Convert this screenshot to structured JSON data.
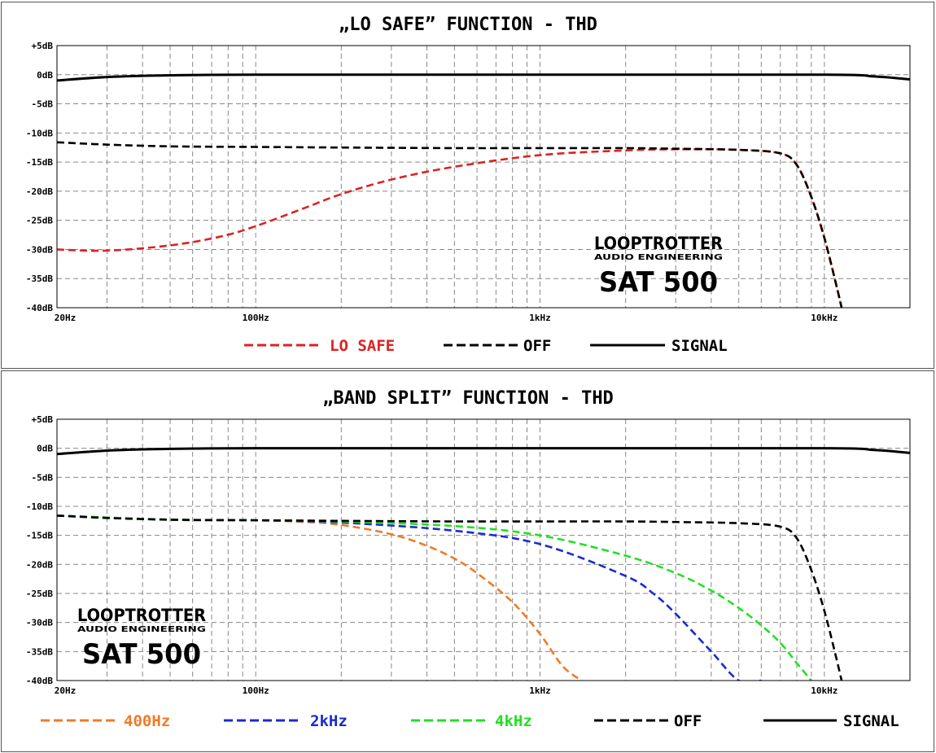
{
  "chart_data": [
    {
      "type": "line",
      "title": "„LO SAFE” FUNCTION - THD",
      "xscale": "log",
      "xlim": [
        20,
        20000
      ],
      "ylim": [
        -40,
        5
      ],
      "x_ticks": [
        "20Hz",
        "100Hz",
        "1kHz",
        "10kHz"
      ],
      "y_ticks": [
        "+5dB",
        "0dB",
        "-5dB",
        "-10dB",
        "-15dB",
        "-20dB",
        "-25dB",
        "-30dB",
        "-35dB",
        "-40dB"
      ],
      "grid": true,
      "legend_position": "bottom",
      "brand": {
        "line1": "LOOPTROTTER",
        "line2": "AUDIO ENGINEERING",
        "line3": "SAT  500"
      },
      "series": [
        {
          "name": "LO SAFE",
          "color": "#dd2222",
          "style": "dashed",
          "x": [
            20,
            30,
            50,
            75,
            100,
            150,
            200,
            300,
            500,
            1000,
            2000,
            3000,
            5000,
            7000,
            8000,
            9000,
            10000,
            11000,
            11500
          ],
          "y": [
            -30,
            -30.2,
            -29.3,
            -27.8,
            -26,
            -22.8,
            -20.5,
            -18,
            -15.8,
            -13.8,
            -13,
            -12.8,
            -12.9,
            -13.5,
            -15.5,
            -21,
            -28,
            -36,
            -40
          ]
        },
        {
          "name": "OFF",
          "color": "#000000",
          "style": "dashed",
          "x": [
            20,
            30,
            50,
            100,
            200,
            500,
            1000,
            2000,
            3000,
            5000,
            7000,
            8000,
            9000,
            10000,
            11000,
            11500
          ],
          "y": [
            -11.6,
            -12,
            -12.3,
            -12.4,
            -12.5,
            -12.6,
            -12.6,
            -12.6,
            -12.7,
            -12.9,
            -13.5,
            -15.5,
            -21,
            -28,
            -36,
            -40
          ]
        },
        {
          "name": "SIGNAL",
          "color": "#000000",
          "style": "solid",
          "x": [
            20,
            30,
            50,
            100,
            1000,
            10000,
            15000,
            20000
          ],
          "y": [
            -1,
            -0.4,
            -0.1,
            0,
            0,
            0,
            -0.3,
            -0.8
          ]
        }
      ]
    },
    {
      "type": "line",
      "title": "„BAND SPLIT” FUNCTION - THD",
      "xscale": "log",
      "xlim": [
        20,
        20000
      ],
      "ylim": [
        -40,
        5
      ],
      "x_ticks": [
        "20Hz",
        "100Hz",
        "1kHz",
        "10kHz"
      ],
      "y_ticks": [
        "+5dB",
        "0dB",
        "-5dB",
        "-10dB",
        "-15dB",
        "-20dB",
        "-25dB",
        "-30dB",
        "-35dB",
        "-40dB"
      ],
      "grid": true,
      "legend_position": "bottom",
      "brand": {
        "line1": "LOOPTROTTER",
        "line2": "AUDIO ENGINEERING",
        "line3": "SAT  500"
      },
      "series": [
        {
          "name": "400Hz",
          "color": "#f07a28",
          "style": "dashed",
          "x": [
            20,
            50,
            100,
            150,
            200,
            300,
            400,
            500,
            600,
            800,
            1000,
            1200,
            1400
          ],
          "y": [
            -11.6,
            -12.3,
            -12.4,
            -12.7,
            -13.2,
            -14.8,
            -16.8,
            -19,
            -21.5,
            -26.5,
            -32,
            -37.5,
            -40
          ]
        },
        {
          "name": "2kHz",
          "color": "#1a2bd0",
          "style": "dashed",
          "x": [
            20,
            50,
            100,
            200,
            500,
            1000,
            2000,
            2500,
            3000,
            4000,
            5000,
            6000
          ],
          "y": [
            -11.6,
            -12.3,
            -12.4,
            -12.8,
            -14.2,
            -16.5,
            -22,
            -25,
            -28.5,
            -35,
            -40,
            -40
          ]
        },
        {
          "name": "4kHz",
          "color": "#22e022",
          "style": "dashed",
          "x": [
            20,
            50,
            100,
            200,
            500,
            1000,
            2000,
            3000,
            4000,
            5000,
            6000,
            7000,
            8000,
            9000
          ],
          "y": [
            -11.6,
            -12.3,
            -12.4,
            -12.6,
            -13.4,
            -15,
            -18.5,
            -21.5,
            -24.5,
            -27.5,
            -30.5,
            -33.5,
            -37,
            -40
          ]
        },
        {
          "name": "OFF",
          "color": "#000000",
          "style": "dashed",
          "x": [
            20,
            30,
            50,
            100,
            200,
            500,
            1000,
            2000,
            3000,
            5000,
            7000,
            8000,
            9000,
            10000,
            11000,
            11500
          ],
          "y": [
            -11.6,
            -12,
            -12.3,
            -12.4,
            -12.5,
            -12.6,
            -12.6,
            -12.6,
            -12.7,
            -12.9,
            -13.5,
            -15.5,
            -21,
            -28,
            -36,
            -40
          ]
        },
        {
          "name": "SIGNAL",
          "color": "#000000",
          "style": "solid",
          "x": [
            20,
            30,
            50,
            100,
            1000,
            10000,
            15000,
            20000
          ],
          "y": [
            -1,
            -0.4,
            -0.1,
            0,
            0,
            0,
            -0.3,
            -0.8
          ]
        }
      ]
    }
  ]
}
